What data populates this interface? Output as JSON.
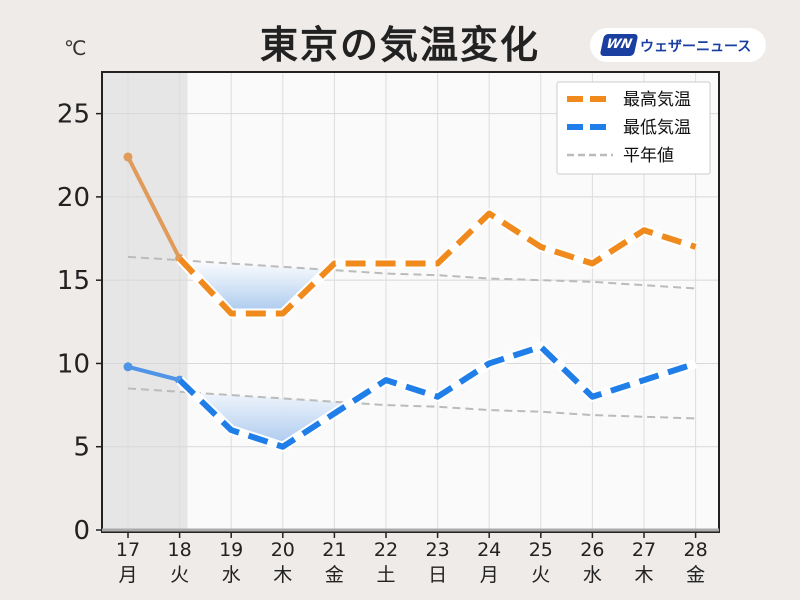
{
  "title": "東京の気温変化",
  "unit": "℃",
  "brand": {
    "mark": "WN",
    "name": "ウェザーニュース"
  },
  "colors": {
    "high": "#f08a1c",
    "high_past": "#e09a5a",
    "low": "#1f7ee8",
    "low_past": "#4f94e6",
    "normal": "#bbbbbb",
    "past_shade": "#e6e6e6",
    "fill": "#a8c8ee",
    "saturday": "#2f8ad8",
    "holiday": "#e03030"
  },
  "chart_data": {
    "type": "line",
    "title": "東京の気温変化",
    "ylabel": "℃",
    "ylim": [
      0,
      27.5
    ],
    "yticks": [
      0,
      5,
      10,
      15,
      20,
      25
    ],
    "grid": true,
    "legend_position": "top-right",
    "categories": [
      {
        "day": "17",
        "weekday": "月",
        "kind": "normal"
      },
      {
        "day": "18",
        "weekday": "火",
        "kind": "normal"
      },
      {
        "day": "19",
        "weekday": "水",
        "kind": "normal"
      },
      {
        "day": "20",
        "weekday": "木",
        "kind": "normal"
      },
      {
        "day": "21",
        "weekday": "金",
        "kind": "normal"
      },
      {
        "day": "22",
        "weekday": "土",
        "kind": "saturday"
      },
      {
        "day": "23",
        "weekday": "日",
        "kind": "holiday"
      },
      {
        "day": "24",
        "weekday": "月",
        "kind": "holiday"
      },
      {
        "day": "25",
        "weekday": "火",
        "kind": "normal"
      },
      {
        "day": "26",
        "weekday": "水",
        "kind": "normal"
      },
      {
        "day": "27",
        "weekday": "木",
        "kind": "normal"
      },
      {
        "day": "28",
        "weekday": "金",
        "kind": "normal"
      }
    ],
    "past_days": 2,
    "series": [
      {
        "name": "最高気温",
        "key": "high",
        "values": [
          22.4,
          16.3,
          13,
          13,
          16,
          16,
          16,
          19,
          17,
          16,
          18,
          17
        ]
      },
      {
        "name": "最低気温",
        "key": "low",
        "values": [
          9.8,
          9.0,
          6,
          5,
          7,
          9,
          8,
          10,
          11,
          8,
          9,
          10
        ]
      },
      {
        "name": "平年値",
        "key": "normal_high",
        "values": [
          16.4,
          16.2,
          16.0,
          15.8,
          15.6,
          15.4,
          15.3,
          15.1,
          15.0,
          14.9,
          14.7,
          14.5
        ]
      },
      {
        "name": "平年値",
        "key": "normal_low",
        "values": [
          8.5,
          8.3,
          8.1,
          7.9,
          7.7,
          7.5,
          7.4,
          7.2,
          7.1,
          6.9,
          6.8,
          6.7
        ]
      }
    ],
    "legend": [
      "最高気温",
      "最低気温",
      "平年値"
    ]
  }
}
